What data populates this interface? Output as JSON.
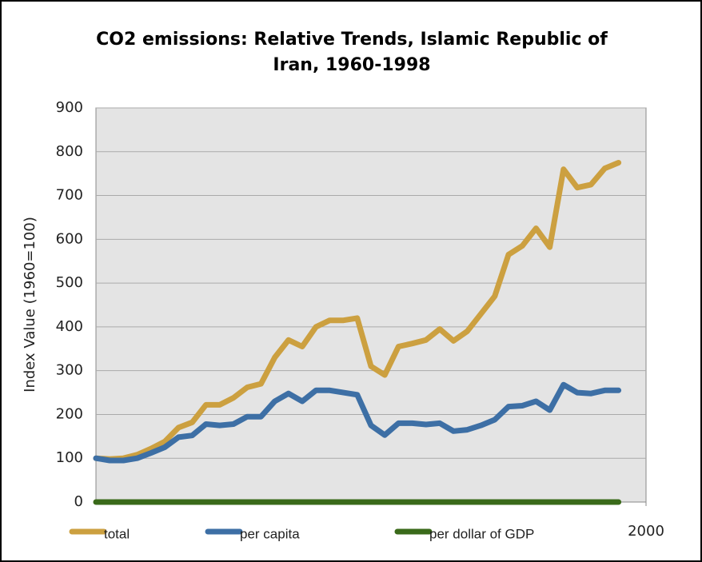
{
  "chart_data": {
    "type": "line",
    "title": "CO2 emissions: Relative Trends, Islamic Republic of Iran, 1960-1998",
    "y_label": "Index Value (1960=100)",
    "x": [
      1960,
      1961,
      1962,
      1963,
      1964,
      1965,
      1966,
      1967,
      1968,
      1969,
      1970,
      1971,
      1972,
      1973,
      1974,
      1975,
      1976,
      1977,
      1978,
      1979,
      1980,
      1981,
      1982,
      1983,
      1984,
      1985,
      1986,
      1987,
      1988,
      1989,
      1990,
      1991,
      1992,
      1993,
      1994,
      1995,
      1996,
      1997,
      1998
    ],
    "series": [
      {
        "name": "total",
        "color": "#cca040",
        "values": [
          100,
          98,
          100,
          108,
          122,
          138,
          170,
          182,
          222,
          222,
          238,
          262,
          270,
          330,
          370,
          355,
          400,
          415,
          415,
          420,
          310,
          290,
          355,
          362,
          370,
          395,
          368,
          390,
          430,
          470,
          565,
          585,
          625,
          582,
          760,
          718,
          725,
          762,
          775
        ]
      },
      {
        "name": "per capita",
        "color": "#3d6fa5",
        "values": [
          100,
          95,
          95,
          100,
          112,
          125,
          148,
          152,
          178,
          175,
          178,
          195,
          195,
          230,
          248,
          230,
          255,
          255,
          250,
          245,
          175,
          153,
          180,
          180,
          177,
          180,
          162,
          165,
          175,
          188,
          218,
          220,
          230,
          210,
          268,
          250,
          248,
          255,
          255
        ]
      },
      {
        "name": "per dollar of GDP",
        "color": "#3a6a1a",
        "values": [
          0,
          0,
          0,
          0,
          0,
          0,
          0,
          0,
          0,
          0,
          0,
          0,
          0,
          0,
          0,
          0,
          0,
          0,
          0,
          0,
          0,
          0,
          0,
          0,
          0,
          0,
          0,
          0,
          0,
          0,
          0,
          0,
          0,
          0,
          0,
          0,
          0,
          0,
          0
        ]
      }
    ],
    "xlim": [
      1960,
      2000
    ],
    "xticks": [
      2000
    ],
    "ylim": [
      0,
      900
    ],
    "yticks": [
      0,
      100,
      200,
      300,
      400,
      500,
      600,
      700,
      800,
      900
    ],
    "grid": true,
    "legend": "bottom"
  }
}
